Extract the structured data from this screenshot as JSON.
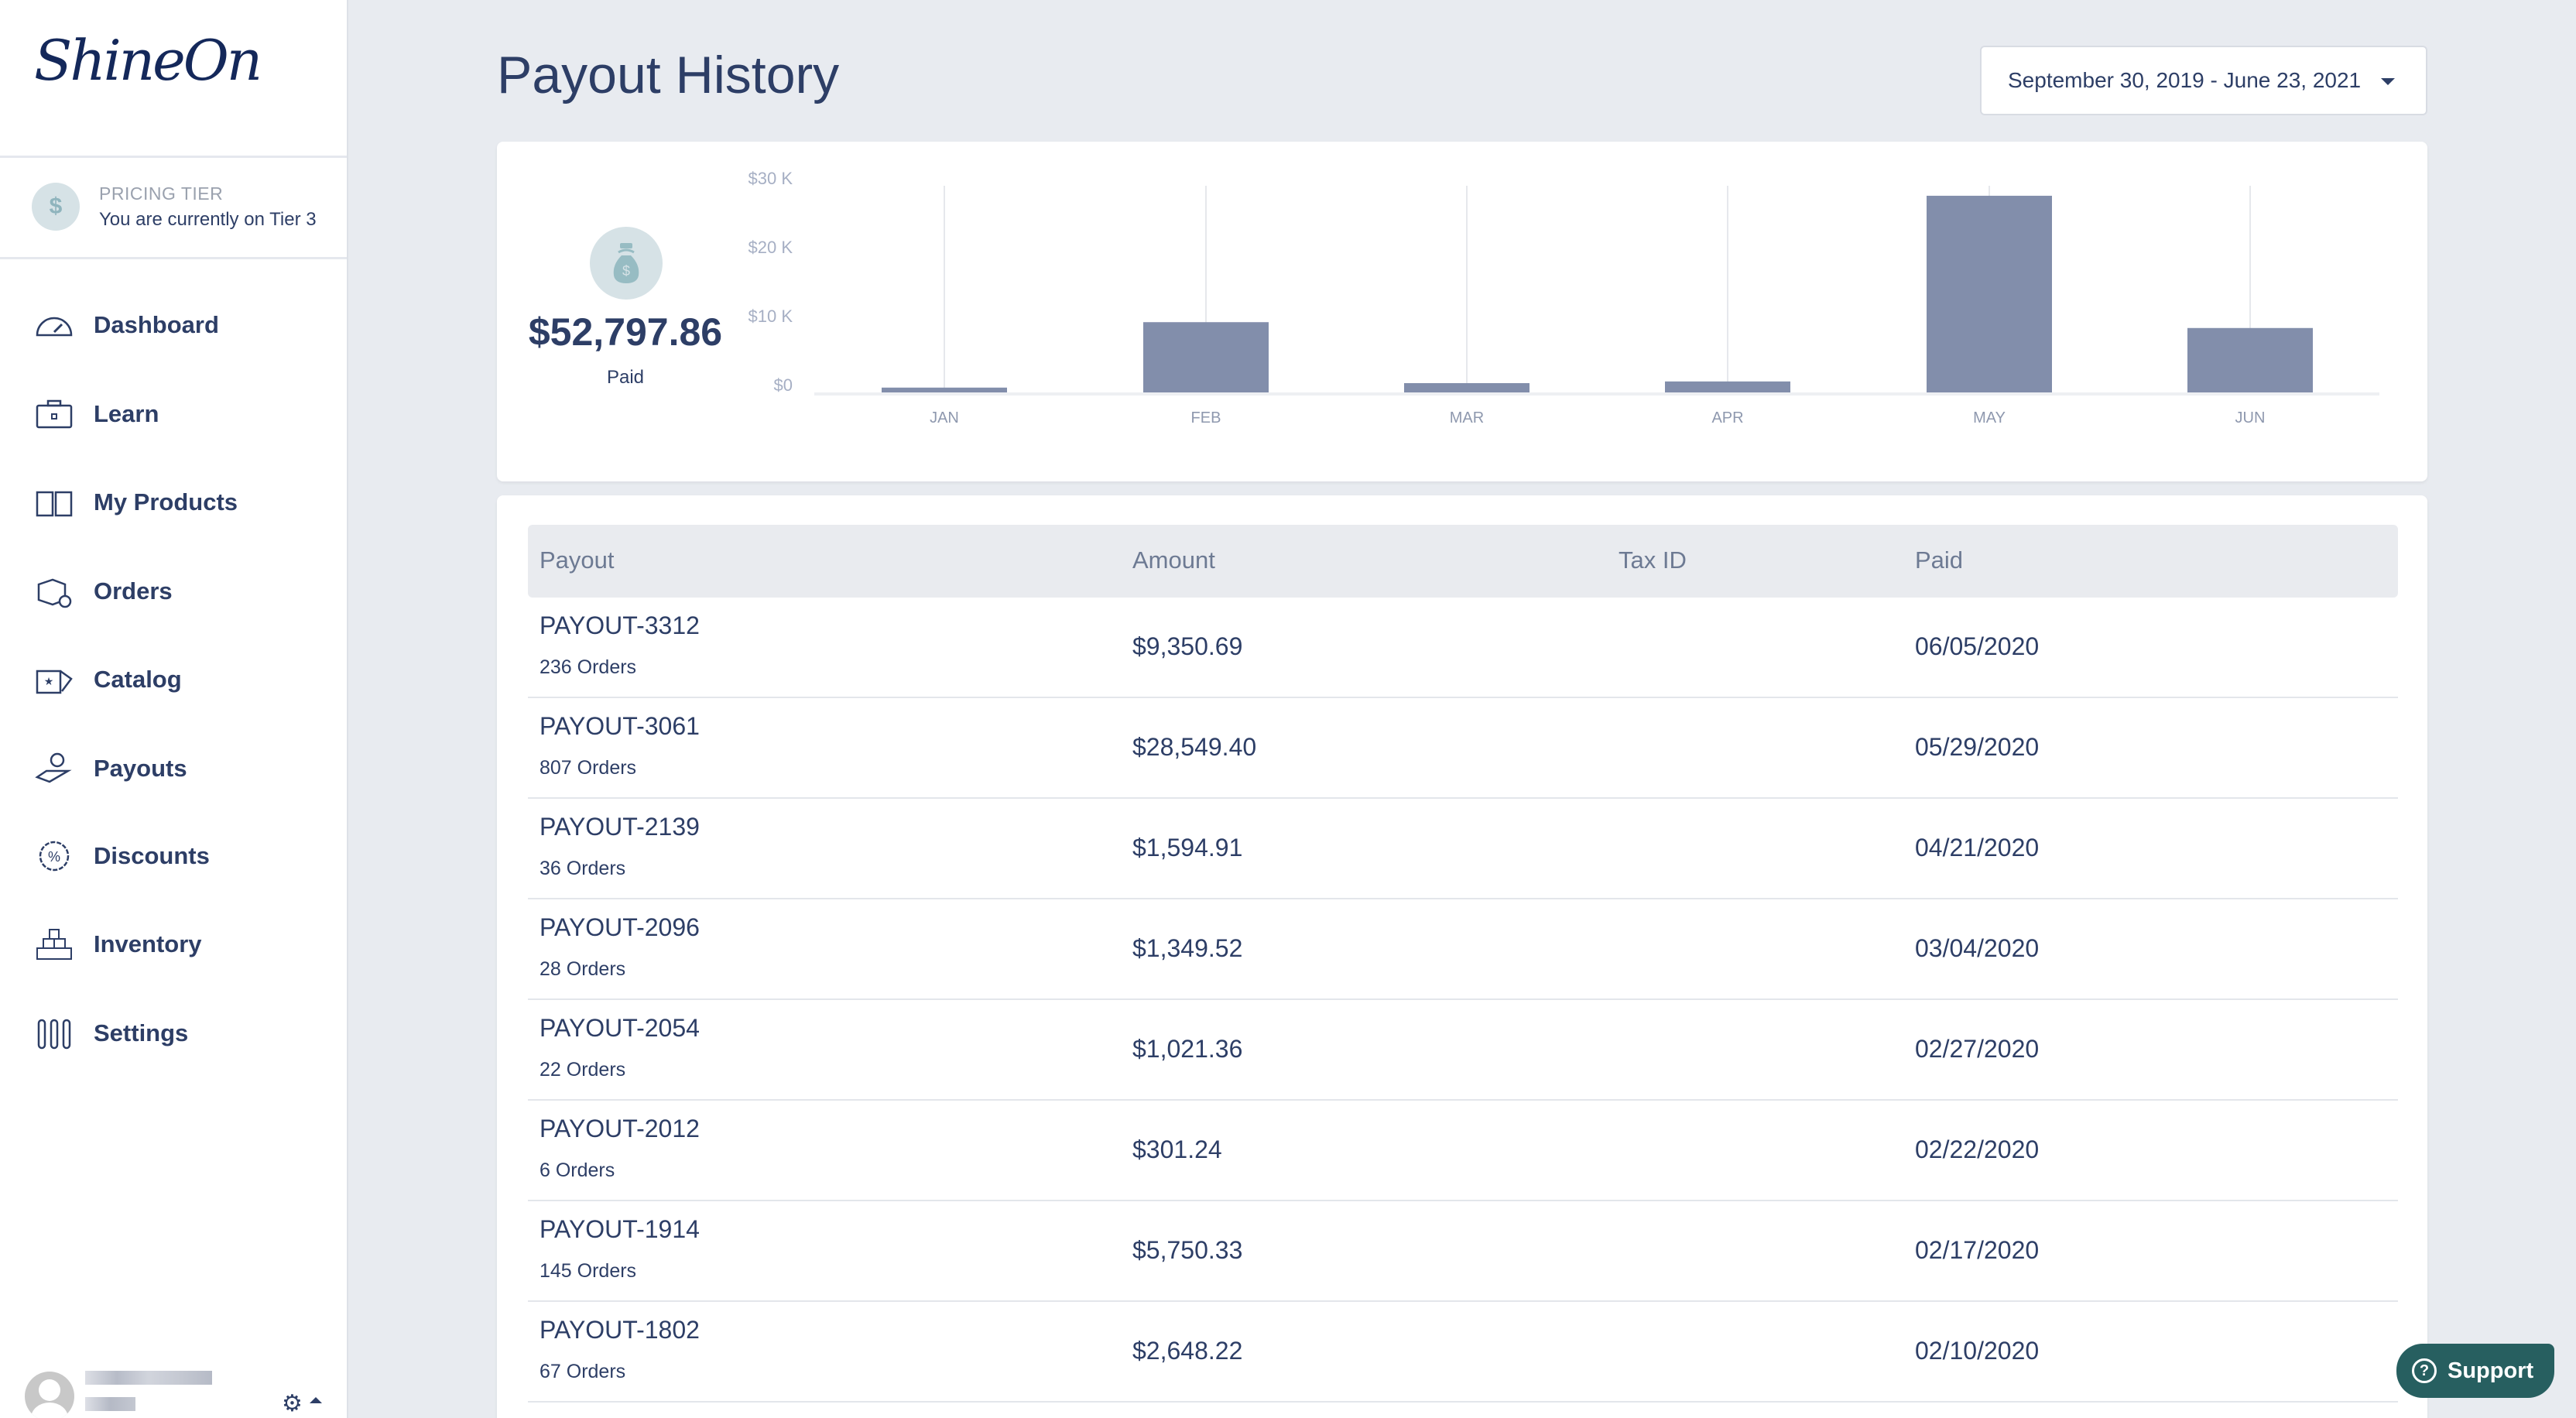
{
  "brand": {
    "logo_text": "ShineOn"
  },
  "pricing": {
    "label": "PRICING TIER",
    "text": "You are currently on Tier 3"
  },
  "nav": [
    {
      "label": "Dashboard",
      "icon": "speedometer-icon"
    },
    {
      "label": "Learn",
      "icon": "briefcase-icon"
    },
    {
      "label": "My Products",
      "icon": "book-icon"
    },
    {
      "label": "Orders",
      "icon": "box-icon"
    },
    {
      "label": "Catalog",
      "icon": "catalog-icon"
    },
    {
      "label": "Payouts",
      "icon": "hand-coin-icon"
    },
    {
      "label": "Discounts",
      "icon": "discount-badge-icon"
    },
    {
      "label": "Inventory",
      "icon": "stacked-boxes-icon"
    },
    {
      "label": "Settings",
      "icon": "sliders-icon"
    }
  ],
  "page": {
    "title": "Payout History",
    "date_range": "September 30, 2019 - June 23, 2021"
  },
  "summary": {
    "total": "$52,797.86",
    "label": "Paid"
  },
  "chart_data": {
    "type": "bar",
    "categories": [
      "JAN",
      "FEB",
      "MAR",
      "APR",
      "MAY",
      "JUN"
    ],
    "values": [
      700,
      10200,
      1349.52,
      1594.91,
      28549.4,
      9350.69
    ],
    "yticks": [
      "$0",
      "$10 K",
      "$20 K",
      "$30 K"
    ],
    "ylim": [
      0,
      30000
    ],
    "color": "#828eab"
  },
  "table": {
    "headers": [
      "Payout",
      "Amount",
      "Tax ID",
      "Paid"
    ],
    "rows": [
      {
        "id": "PAYOUT-3312",
        "orders": "236 Orders",
        "amount": "$9,350.69",
        "tax": "",
        "paid": "06/05/2020"
      },
      {
        "id": "PAYOUT-3061",
        "orders": "807 Orders",
        "amount": "$28,549.40",
        "tax": "",
        "paid": "05/29/2020"
      },
      {
        "id": "PAYOUT-2139",
        "orders": "36 Orders",
        "amount": "$1,594.91",
        "tax": "",
        "paid": "04/21/2020"
      },
      {
        "id": "PAYOUT-2096",
        "orders": "28 Orders",
        "amount": "$1,349.52",
        "tax": "",
        "paid": "03/04/2020"
      },
      {
        "id": "PAYOUT-2054",
        "orders": "22 Orders",
        "amount": "$1,021.36",
        "tax": "",
        "paid": "02/27/2020"
      },
      {
        "id": "PAYOUT-2012",
        "orders": "6 Orders",
        "amount": "$301.24",
        "tax": "",
        "paid": "02/22/2020"
      },
      {
        "id": "PAYOUT-1914",
        "orders": "145 Orders",
        "amount": "$5,750.33",
        "tax": "",
        "paid": "02/17/2020"
      },
      {
        "id": "PAYOUT-1802",
        "orders": "67 Orders",
        "amount": "$2,648.22",
        "tax": "",
        "paid": "02/10/2020"
      }
    ]
  },
  "support": {
    "label": "Support"
  },
  "colors": {
    "navy": "#2d3e66",
    "teal": "#275f60",
    "bar": "#828eab",
    "bg": "#e8ebf0"
  }
}
